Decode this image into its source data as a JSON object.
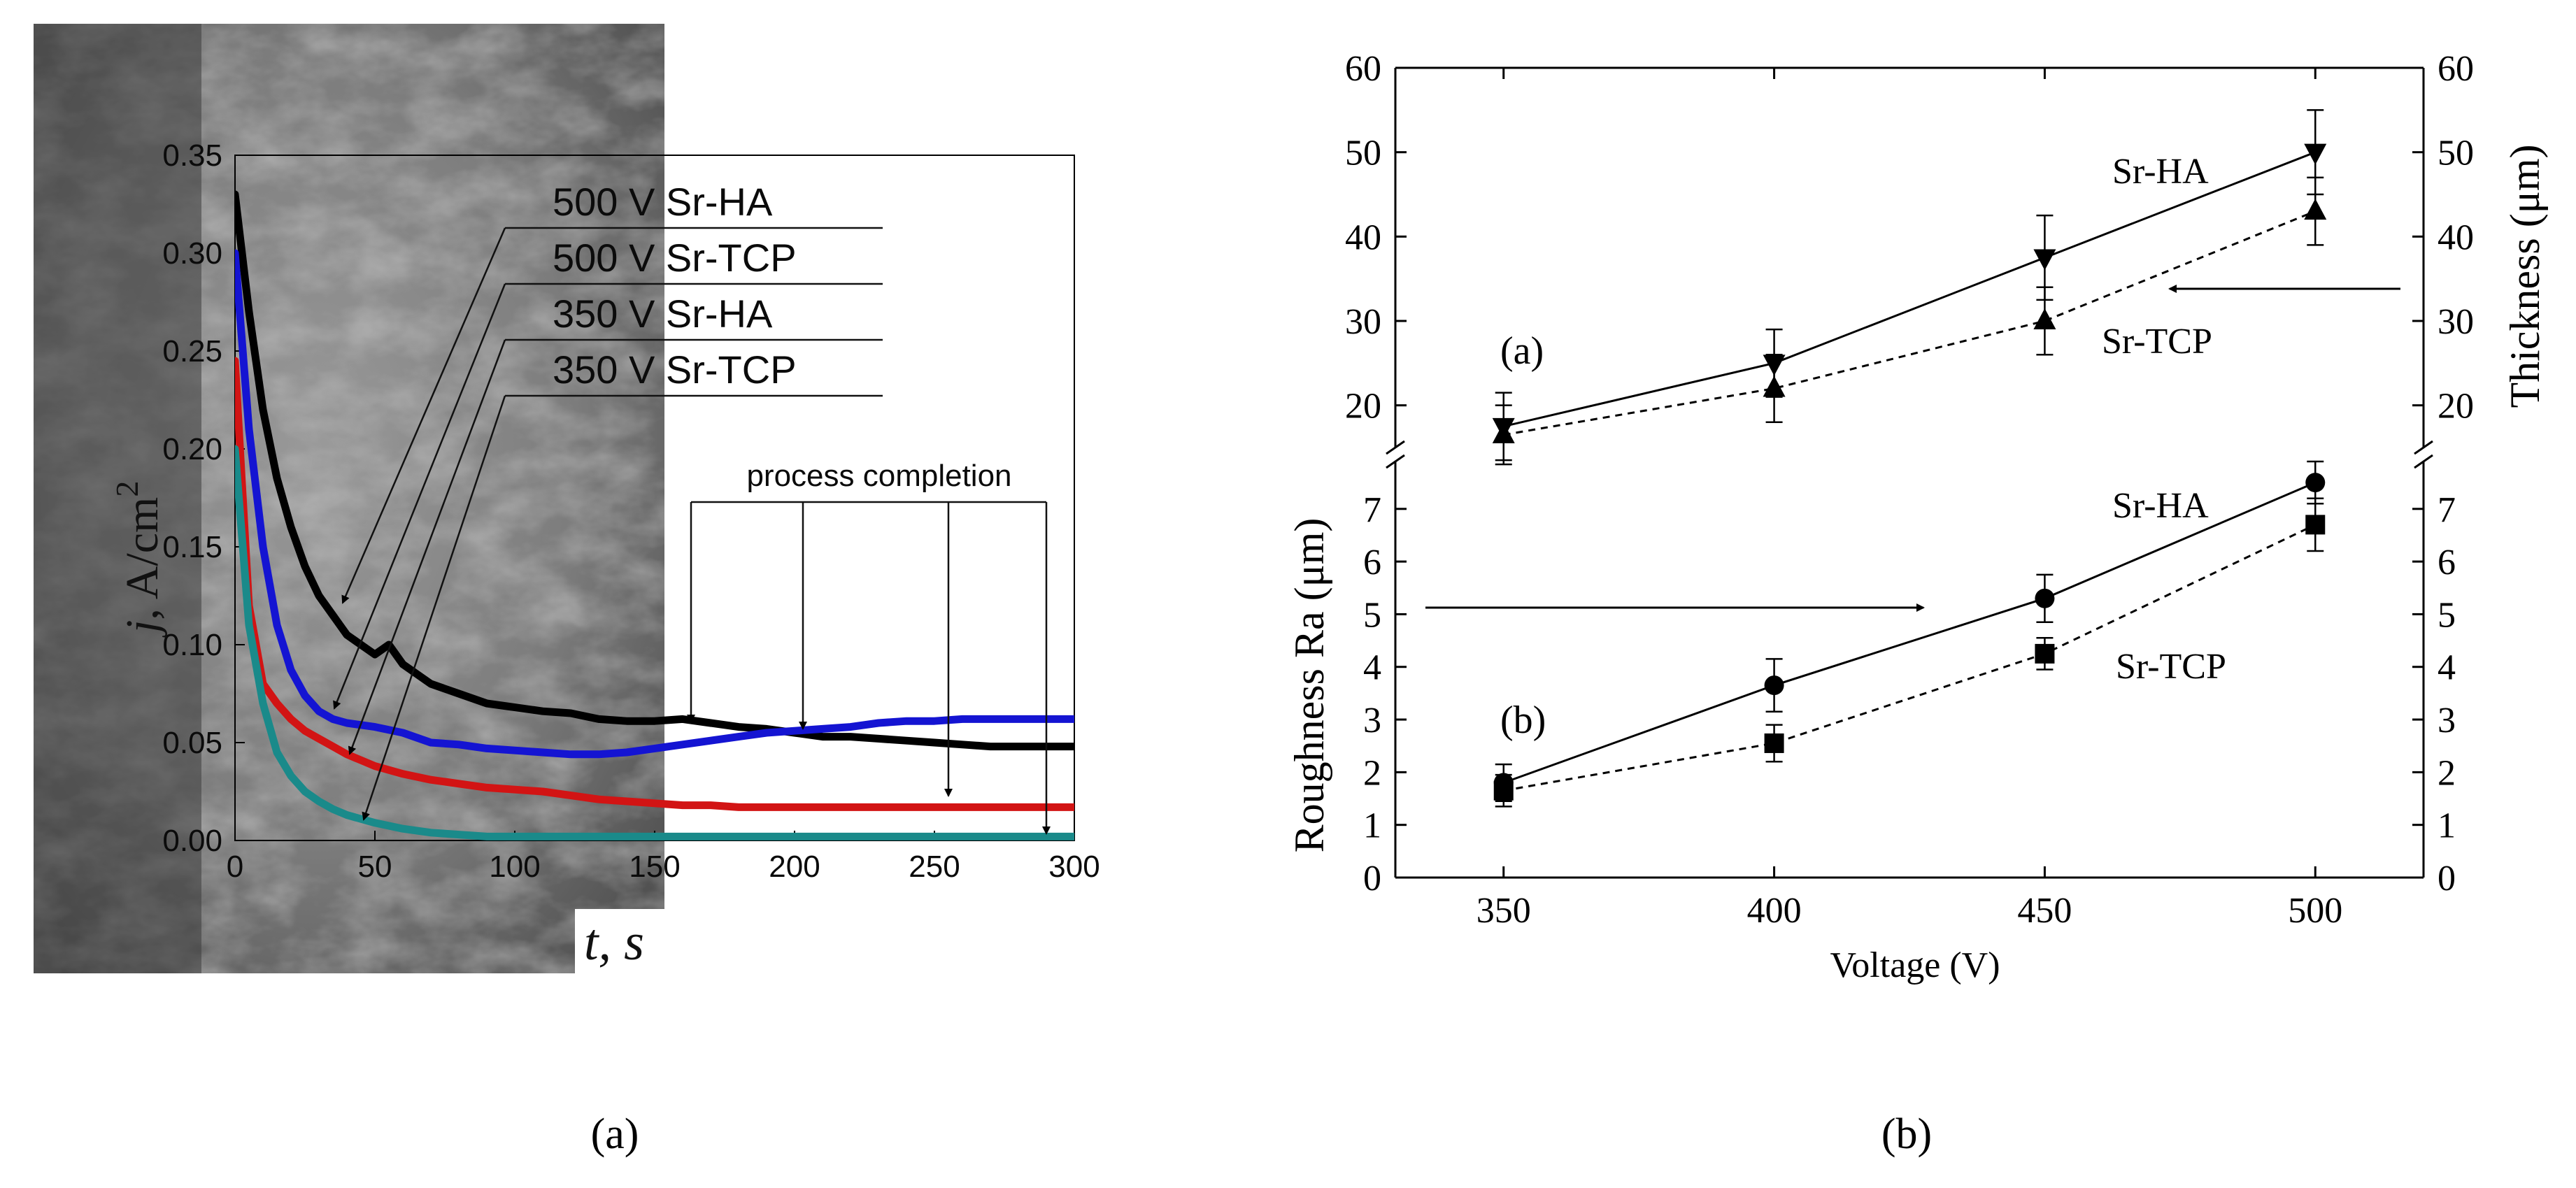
{
  "captions": {
    "left": "(a)",
    "right": "(b)"
  },
  "chart_data": [
    {
      "type": "line",
      "panel": "a",
      "title": "",
      "xlabel_var": "t,",
      "xlabel_unit": "s",
      "ylabel_var": "j",
      "ylabel_unit": ", A/cm",
      "ylabel_exp": "2",
      "xlim": [
        0,
        300
      ],
      "ylim": [
        0,
        0.35
      ],
      "xticks": [
        "0",
        "50",
        "100",
        "150",
        "200",
        "250",
        "300"
      ],
      "yticks": [
        "0.00",
        "0.05",
        "0.10",
        "0.15",
        "0.20",
        "0.25",
        "0.30",
        "0.35"
      ],
      "annotation": "process completion",
      "completion_times": [
        163,
        203,
        255,
        290
      ],
      "series": [
        {
          "name": "500 V Sr-HA",
          "color": "#000000",
          "x": [
            0,
            5,
            10,
            15,
            20,
            25,
            30,
            35,
            40,
            45,
            50,
            55,
            60,
            70,
            80,
            90,
            100,
            110,
            120,
            130,
            140,
            150,
            160,
            170,
            180,
            190,
            200,
            210,
            220,
            230,
            240,
            250,
            260,
            270,
            280,
            290,
            300
          ],
          "y": [
            0.33,
            0.27,
            0.22,
            0.185,
            0.16,
            0.14,
            0.125,
            0.115,
            0.105,
            0.1,
            0.095,
            0.1,
            0.09,
            0.08,
            0.075,
            0.07,
            0.068,
            0.066,
            0.065,
            0.062,
            0.061,
            0.061,
            0.062,
            0.06,
            0.058,
            0.057,
            0.055,
            0.053,
            0.053,
            0.052,
            0.051,
            0.05,
            0.049,
            0.048,
            0.048,
            0.048,
            0.048
          ]
        },
        {
          "name": "500 V Sr-TCP",
          "color": "#1414d2",
          "x": [
            0,
            5,
            10,
            15,
            20,
            25,
            30,
            35,
            40,
            50,
            60,
            70,
            80,
            90,
            100,
            110,
            120,
            130,
            140,
            150,
            160,
            170,
            180,
            190,
            200,
            210,
            220,
            230,
            240,
            250,
            260,
            270,
            280,
            290,
            300
          ],
          "y": [
            0.3,
            0.21,
            0.15,
            0.11,
            0.087,
            0.074,
            0.066,
            0.062,
            0.06,
            0.058,
            0.055,
            0.05,
            0.049,
            0.047,
            0.046,
            0.045,
            0.044,
            0.044,
            0.045,
            0.047,
            0.049,
            0.051,
            0.053,
            0.055,
            0.056,
            0.057,
            0.058,
            0.06,
            0.061,
            0.061,
            0.062,
            0.062,
            0.062,
            0.062,
            0.062
          ]
        },
        {
          "name": "350 V Sr-HA",
          "color": "#d21414",
          "x": [
            0,
            5,
            10,
            15,
            20,
            25,
            30,
            35,
            40,
            50,
            60,
            70,
            80,
            90,
            100,
            110,
            120,
            130,
            140,
            150,
            160,
            170,
            180,
            200,
            250,
            300
          ],
          "y": [
            0.245,
            0.12,
            0.08,
            0.07,
            0.062,
            0.056,
            0.052,
            0.048,
            0.044,
            0.038,
            0.034,
            0.031,
            0.029,
            0.027,
            0.026,
            0.025,
            0.023,
            0.021,
            0.02,
            0.019,
            0.018,
            0.018,
            0.017,
            0.017,
            0.017,
            0.017
          ]
        },
        {
          "name": "350 V Sr-TCP",
          "color": "#1a8a8a",
          "x": [
            0,
            5,
            10,
            15,
            20,
            25,
            30,
            35,
            40,
            50,
            60,
            70,
            80,
            90,
            100,
            120,
            150,
            200,
            250,
            300
          ],
          "y": [
            0.2,
            0.11,
            0.07,
            0.045,
            0.033,
            0.025,
            0.02,
            0.016,
            0.013,
            0.009,
            0.006,
            0.004,
            0.003,
            0.002,
            0.002,
            0.002,
            0.002,
            0.002,
            0.002,
            0.002
          ]
        }
      ]
    },
    {
      "type": "line",
      "panel": "b-upper",
      "label": "(a)",
      "xlabel": "Voltage (V)",
      "ylabel": "Thickness (μm)",
      "xlim": [
        330,
        520
      ],
      "ylim": [
        15,
        60
      ],
      "xticks": [
        "350",
        "400",
        "450",
        "500"
      ],
      "yticks": [
        "20",
        "30",
        "40",
        "50",
        "60"
      ],
      "series": [
        {
          "name": "Sr-HA",
          "marker": "triangle-down",
          "linestyle": "solid",
          "x": [
            350,
            400,
            450,
            500
          ],
          "y": [
            17.5,
            25,
            37.5,
            50
          ],
          "err": [
            4,
            4,
            5,
            5
          ]
        },
        {
          "name": "Sr-TCP",
          "marker": "triangle-up",
          "linestyle": "dashed",
          "x": [
            350,
            400,
            450,
            500
          ],
          "y": [
            16.5,
            22,
            30,
            43
          ],
          "err": [
            3.5,
            4,
            4,
            4
          ]
        }
      ]
    },
    {
      "type": "line",
      "panel": "b-lower",
      "label": "(b)",
      "xlabel": "Voltage (V)",
      "ylabel": "Roughness Ra (μm)",
      "xlim": [
        330,
        520
      ],
      "ylim": [
        0,
        7.9
      ],
      "xticks": [
        "350",
        "400",
        "450",
        "500"
      ],
      "yticks": [
        "0",
        "1",
        "2",
        "3",
        "4",
        "5",
        "6",
        "7"
      ],
      "series": [
        {
          "name": "Sr-HA",
          "marker": "circle",
          "linestyle": "solid",
          "x": [
            350,
            400,
            450,
            500
          ],
          "y": [
            1.8,
            3.65,
            5.3,
            7.5
          ],
          "err": [
            0.35,
            0.5,
            0.45,
            0.4
          ]
        },
        {
          "name": "Sr-TCP",
          "marker": "square",
          "linestyle": "dashed",
          "x": [
            350,
            400,
            450,
            500
          ],
          "y": [
            1.65,
            2.55,
            4.25,
            6.7
          ],
          "err": [
            0.3,
            0.35,
            0.3,
            0.5
          ]
        }
      ]
    }
  ]
}
